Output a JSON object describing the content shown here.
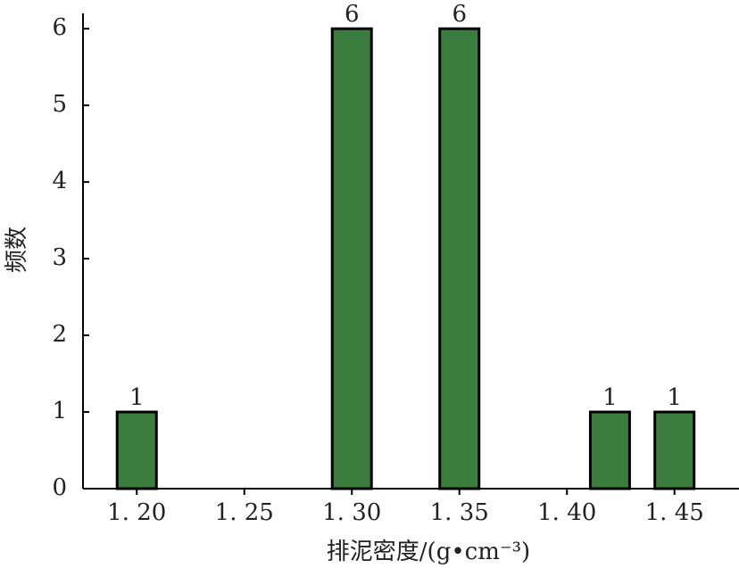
{
  "chart_data": {
    "type": "bar",
    "x": [
      1.2,
      1.3,
      1.35,
      1.42,
      1.45
    ],
    "values": [
      1,
      6,
      6,
      1,
      1
    ],
    "color": "#3a7d3e",
    "xlabel": "排泥密度/(g•cm⁻³)",
    "ylabel": "频数",
    "xlim": [
      1.175,
      1.48
    ],
    "xticks": [
      {
        "value": 1.2,
        "label": "1. 20"
      },
      {
        "value": 1.25,
        "label": "1. 25"
      },
      {
        "value": 1.3,
        "label": "1. 30"
      },
      {
        "value": 1.35,
        "label": "1. 35"
      },
      {
        "value": 1.4,
        "label": "1. 40"
      },
      {
        "value": 1.45,
        "label": "1. 45"
      }
    ],
    "ylim": [
      0,
      6.2
    ],
    "yticks": [
      0,
      1,
      2,
      3,
      4,
      5,
      6
    ],
    "grid": false
  }
}
